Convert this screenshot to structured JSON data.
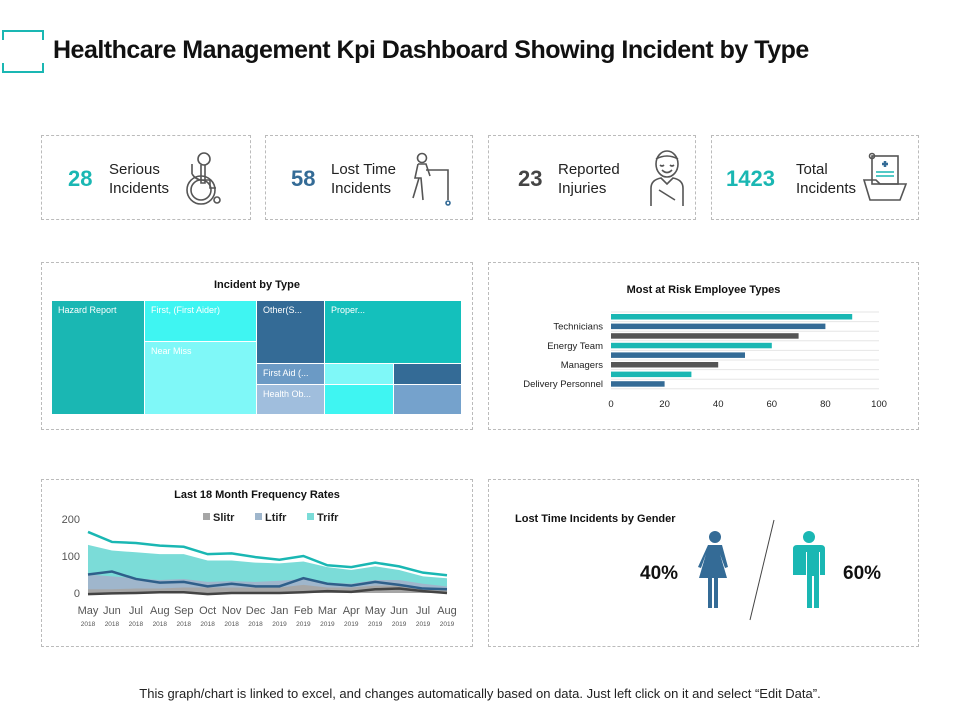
{
  "title": "Healthcare Management Kpi Dashboard Showing Incident by Type",
  "kpis": [
    {
      "value": "28",
      "label1": "Serious",
      "label2": "Incidents",
      "color": "#1ab7b3",
      "icon": "wheelchair-icon"
    },
    {
      "value": "58",
      "label1": "Lost Time",
      "label2": "Incidents",
      "color": "#346b96",
      "icon": "walker-icon"
    },
    {
      "value": "23",
      "label1": "Reported",
      "label2": "Injuries",
      "color": "#444444",
      "icon": "injured-person-icon"
    },
    {
      "value": "1423",
      "label1": "Total",
      "label2": "Incidents",
      "color": "#1ab7b3",
      "icon": "medical-folder-icon"
    }
  ],
  "chart_data": [
    {
      "type": "treemap",
      "title": "Incident by Type",
      "labels": [
        "Hazard Report",
        "First, (First Aider)",
        "Near Miss",
        "Other(S...",
        "Proper...",
        "First Aid (...",
        "Health Ob..."
      ]
    },
    {
      "type": "bar",
      "orientation": "horizontal",
      "title": "Most at Risk Employee Types",
      "tick_labels": [
        "Technicians",
        "Energy Team",
        "Managers",
        "Delivery Personnel"
      ],
      "values": [
        90,
        80,
        70,
        60,
        50,
        40,
        30,
        20
      ],
      "colors": [
        "#1ab7b3",
        "#346b96",
        "#555555"
      ],
      "xlim": [
        0,
        100
      ],
      "xticks": [
        "0",
        "20",
        "40",
        "60",
        "80",
        "100"
      ],
      "grid": true
    },
    {
      "type": "area",
      "title": "Last 18 Month Frequency Rates",
      "categories": [
        "May 2018",
        "Jun 2018",
        "Jul 2018",
        "Aug 2018",
        "Sep 2018",
        "Oct 2018",
        "Nov 2018",
        "Dec 2018",
        "Jan 2019",
        "Feb 2019",
        "Mar 2019",
        "Apr 2019",
        "May 2019",
        "Jun 2019",
        "Jul 2019",
        "Aug 2019"
      ],
      "months": [
        "May",
        "Jun",
        "Jul",
        "Aug",
        "Sep",
        "Oct",
        "Nov",
        "Dec",
        "Jan",
        "Feb",
        "Mar",
        "Apr",
        "May",
        "Jun",
        "Jul",
        "Aug"
      ],
      "years": [
        "2018",
        "2018",
        "2018",
        "2018",
        "2018",
        "2018",
        "2018",
        "2018",
        "2019",
        "2019",
        "2019",
        "2019",
        "2019",
        "2019",
        "2019",
        "2019"
      ],
      "ylim": [
        0,
        200
      ],
      "yticks": [
        "0",
        "100",
        "200"
      ],
      "legend_position": "top",
      "series": [
        {
          "name": "Slitr",
          "color": "#a6a6a6",
          "line_color": "#444444",
          "area": [
            10,
            10,
            12,
            12,
            15,
            15,
            15,
            15,
            15,
            22,
            15,
            15,
            20,
            20,
            15,
            12
          ],
          "line": [
            -3,
            -1,
            0,
            2,
            2,
            -3,
            0,
            0,
            0,
            2,
            5,
            3,
            10,
            12,
            5,
            0
          ]
        },
        {
          "name": "Ltifr",
          "color": "#9fb6cc",
          "line_color": "#2f5f8a",
          "area": [
            50,
            45,
            40,
            35,
            38,
            30,
            32,
            30,
            33,
            38,
            28,
            25,
            35,
            35,
            25,
            18
          ],
          "line": [
            50,
            58,
            38,
            28,
            30,
            18,
            25,
            18,
            18,
            40,
            25,
            20,
            30,
            22,
            12,
            10
          ]
        },
        {
          "name": "Trifr",
          "color": "#7bdcd8",
          "line_color": "#1ab7b3",
          "area": [
            130,
            115,
            110,
            105,
            105,
            88,
            88,
            82,
            80,
            85,
            70,
            62,
            72,
            62,
            45,
            40
          ],
          "line": [
            165,
            138,
            135,
            128,
            125,
            105,
            107,
            97,
            90,
            100,
            75,
            70,
            82,
            72,
            55,
            48
          ]
        }
      ]
    },
    {
      "type": "pictograph",
      "title": "Lost Time Incidents by Gender",
      "female_pct": "40%",
      "male_pct": "60%",
      "female_color": "#346b96",
      "male_color": "#1ab7b3"
    }
  ],
  "footer": "This graph/chart is linked to excel, and changes automatically based on data. Just left click on it and select “Edit Data”."
}
